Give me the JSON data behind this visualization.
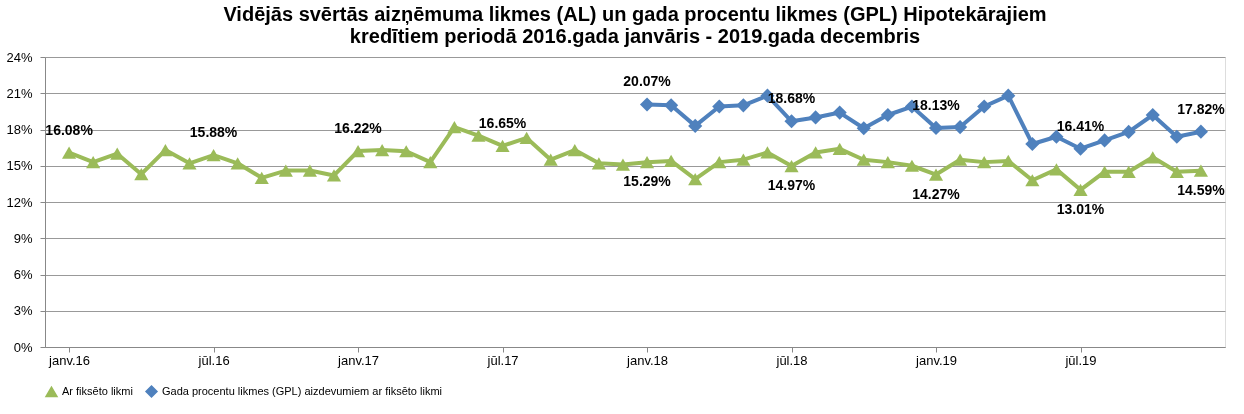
{
  "chart_data": {
    "type": "line",
    "title": "Vidējās svērtās aizņēmuma likmes (AL) un gada procentu likmes (GPL) Hipotekārajiem\nkredītiem periodā 2016.gada janvāris - 2019.gada decembris",
    "categories": [
      "janv.16",
      null,
      null,
      null,
      null,
      null,
      "jūl.16",
      null,
      null,
      null,
      null,
      null,
      "janv.17",
      null,
      null,
      null,
      null,
      null,
      "jūl.17",
      null,
      null,
      null,
      null,
      null,
      "janv.18",
      null,
      null,
      null,
      null,
      null,
      "jūl.18",
      null,
      null,
      null,
      null,
      null,
      "janv.19",
      null,
      null,
      null,
      null,
      null,
      "jūl.19",
      null,
      null,
      null,
      null,
      null
    ],
    "series": [
      {
        "name": "Ar fiksēto likmi",
        "color": "#9bbb59",
        "marker": "triangle",
        "values": [
          16.08,
          15.3,
          16.0,
          14.3,
          16.3,
          15.2,
          15.88,
          15.2,
          14.0,
          14.6,
          14.6,
          14.2,
          16.22,
          16.3,
          16.2,
          15.3,
          18.2,
          17.5,
          16.65,
          17.3,
          15.5,
          16.3,
          15.2,
          15.1,
          15.29,
          15.4,
          13.9,
          15.3,
          15.5,
          16.1,
          14.97,
          16.1,
          16.4,
          15.5,
          15.3,
          15.0,
          14.27,
          15.5,
          15.3,
          15.4,
          13.8,
          14.7,
          13.01,
          14.5,
          14.5,
          15.7,
          14.5,
          14.59
        ],
        "value_labels": [
          "16.08%",
          null,
          null,
          null,
          null,
          null,
          "15.88%",
          null,
          null,
          null,
          null,
          null,
          "16.22%",
          null,
          null,
          null,
          null,
          null,
          "16.65%",
          null,
          null,
          null,
          null,
          null,
          "15.29%",
          null,
          null,
          null,
          null,
          null,
          "14.97%",
          null,
          null,
          null,
          null,
          null,
          "14.27%",
          null,
          null,
          null,
          null,
          null,
          "13.01%",
          null,
          null,
          null,
          null,
          "14.59%"
        ]
      },
      {
        "name": "Gada procentu likmes (GPL) aizdevumiem ar fiksēto likmi",
        "color": "#4f81bd",
        "marker": "diamond",
        "values": [
          null,
          null,
          null,
          null,
          null,
          null,
          null,
          null,
          null,
          null,
          null,
          null,
          null,
          null,
          null,
          null,
          null,
          null,
          null,
          null,
          null,
          null,
          null,
          null,
          20.07,
          20.0,
          18.3,
          19.9,
          20.0,
          20.8,
          18.68,
          19.0,
          19.4,
          18.1,
          19.2,
          19.9,
          18.13,
          18.2,
          19.9,
          20.8,
          16.8,
          17.4,
          16.41,
          17.1,
          17.8,
          19.2,
          17.4,
          17.82
        ],
        "value_labels": [
          null,
          null,
          null,
          null,
          null,
          null,
          null,
          null,
          null,
          null,
          null,
          null,
          null,
          null,
          null,
          null,
          null,
          null,
          null,
          null,
          null,
          null,
          null,
          null,
          "20.07%",
          null,
          null,
          null,
          null,
          null,
          "18.68%",
          null,
          null,
          null,
          null,
          null,
          "18.13%",
          null,
          null,
          null,
          null,
          null,
          "16.41%",
          null,
          null,
          null,
          null,
          "17.82%"
        ]
      }
    ],
    "ylim": [
      0,
      24
    ],
    "yticks": [
      {
        "value": 0,
        "label": "0%"
      },
      {
        "value": 3,
        "label": "3%"
      },
      {
        "value": 6,
        "label": "6%"
      },
      {
        "value": 9,
        "label": "9%"
      },
      {
        "value": 12,
        "label": "12%"
      },
      {
        "value": 15,
        "label": "15%"
      },
      {
        "value": 18,
        "label": "18%"
      },
      {
        "value": 21,
        "label": "21%"
      },
      {
        "value": 24,
        "label": "24%"
      }
    ],
    "grid": "y",
    "legend": "bottom",
    "line_style": "solid"
  }
}
